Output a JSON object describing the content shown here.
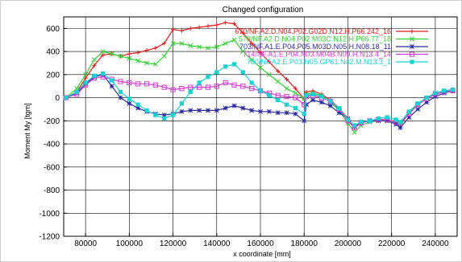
{
  "chart_data": {
    "type": "line",
    "title": "Changed configuration",
    "xlabel": "x coordinate [mm]",
    "ylabel": "Moment My [tgm]",
    "xlim": [
      70000,
      250000
    ],
    "ylim": [
      -1200,
      700
    ],
    "xticks": [
      "80000",
      "100000",
      "120000",
      "140000",
      "160000",
      "180000",
      "200000",
      "220000",
      "240000"
    ],
    "xtick_values": [
      80000,
      100000,
      120000,
      140000,
      160000,
      180000,
      200000,
      220000,
      240000
    ],
    "yticks": [
      "600",
      "400",
      "200",
      "0",
      "-200",
      "-400",
      "-600",
      "-800",
      "-1000",
      "-1200"
    ],
    "ytick_values": [
      600,
      400,
      200,
      0,
      -200,
      -400,
      -600,
      -800,
      -1000,
      -1200
    ],
    "grid": true,
    "legend_position": "top-right",
    "series": [
      {
        "name": "670/NF.A2.D.N04.P02.G02D.N12.H.P66.242_16",
        "color": "#e11a1a",
        "marker": "plus",
        "points": [
          [
            71000,
            0
          ],
          [
            76000,
            50
          ],
          [
            80000,
            170
          ],
          [
            84000,
            280
          ],
          [
            88000,
            370
          ],
          [
            92000,
            380
          ],
          [
            96000,
            360
          ],
          [
            100000,
            380
          ],
          [
            104000,
            390
          ],
          [
            108000,
            410
          ],
          [
            112000,
            430
          ],
          [
            116000,
            470
          ],
          [
            120000,
            590
          ],
          [
            124000,
            580
          ],
          [
            128000,
            600
          ],
          [
            132000,
            610
          ],
          [
            136000,
            620
          ],
          [
            140000,
            630
          ],
          [
            144000,
            650
          ],
          [
            148000,
            640
          ],
          [
            152000,
            560
          ],
          [
            156000,
            470
          ],
          [
            160000,
            390
          ],
          [
            164000,
            310
          ],
          [
            168000,
            230
          ],
          [
            172000,
            160
          ],
          [
            176000,
            80
          ],
          [
            180000,
            -10
          ],
          [
            181000,
            50
          ],
          [
            184000,
            60
          ],
          [
            188000,
            30
          ],
          [
            192000,
            -20
          ],
          [
            196000,
            -90
          ],
          [
            200000,
            -180
          ],
          [
            203000,
            -260
          ],
          [
            206000,
            -220
          ],
          [
            210000,
            -200
          ],
          [
            214000,
            -190
          ],
          [
            218000,
            -190
          ],
          [
            222000,
            -220
          ],
          [
            224000,
            -240
          ],
          [
            228000,
            -130
          ],
          [
            232000,
            -60
          ],
          [
            236000,
            0
          ],
          [
            240000,
            40
          ],
          [
            244000,
            60
          ],
          [
            248000,
            70
          ]
        ]
      },
      {
        "name": "578/NF.A2.D.N04.P02.M03C.N12.H.P66.77_18",
        "color": "#2fd12f",
        "marker": "x",
        "points": [
          [
            71000,
            0
          ],
          [
            76000,
            80
          ],
          [
            80000,
            200
          ],
          [
            84000,
            330
          ],
          [
            88000,
            400
          ],
          [
            92000,
            380
          ],
          [
            96000,
            360
          ],
          [
            100000,
            340
          ],
          [
            104000,
            320
          ],
          [
            108000,
            300
          ],
          [
            112000,
            290
          ],
          [
            116000,
            360
          ],
          [
            120000,
            470
          ],
          [
            124000,
            470
          ],
          [
            128000,
            450
          ],
          [
            132000,
            440
          ],
          [
            136000,
            430
          ],
          [
            140000,
            440
          ],
          [
            144000,
            470
          ],
          [
            148000,
            500
          ],
          [
            152000,
            400
          ],
          [
            156000,
            330
          ],
          [
            160000,
            260
          ],
          [
            164000,
            200
          ],
          [
            168000,
            140
          ],
          [
            172000,
            80
          ],
          [
            176000,
            40
          ],
          [
            180000,
            -10
          ],
          [
            181000,
            30
          ],
          [
            184000,
            40
          ],
          [
            188000,
            20
          ],
          [
            192000,
            -40
          ],
          [
            196000,
            -110
          ],
          [
            200000,
            -220
          ],
          [
            203000,
            -300
          ],
          [
            206000,
            -240
          ],
          [
            210000,
            -210
          ],
          [
            214000,
            -200
          ],
          [
            218000,
            -200
          ],
          [
            222000,
            -210
          ],
          [
            224000,
            -230
          ],
          [
            228000,
            -130
          ],
          [
            232000,
            -60
          ],
          [
            236000,
            0
          ],
          [
            240000,
            40
          ],
          [
            244000,
            60
          ],
          [
            248000,
            70
          ]
        ]
      },
      {
        "name": "703/NF.A1.E.P04.P05.M03D.N05.H.N08.18_11",
        "color": "#2b2ba0",
        "marker": "star",
        "points": [
          [
            71000,
            0
          ],
          [
            76000,
            40
          ],
          [
            80000,
            120
          ],
          [
            84000,
            180
          ],
          [
            88000,
            200
          ],
          [
            92000,
            100
          ],
          [
            96000,
            0
          ],
          [
            100000,
            -50
          ],
          [
            104000,
            -90
          ],
          [
            108000,
            -120
          ],
          [
            112000,
            -140
          ],
          [
            116000,
            -150
          ],
          [
            120000,
            -140
          ],
          [
            124000,
            -120
          ],
          [
            128000,
            -110
          ],
          [
            132000,
            -110
          ],
          [
            136000,
            -110
          ],
          [
            140000,
            -110
          ],
          [
            144000,
            -90
          ],
          [
            148000,
            -70
          ],
          [
            152000,
            -90
          ],
          [
            156000,
            -110
          ],
          [
            160000,
            -120
          ],
          [
            164000,
            -120
          ],
          [
            168000,
            -130
          ],
          [
            172000,
            -130
          ],
          [
            176000,
            -140
          ],
          [
            180000,
            -200
          ],
          [
            181000,
            -60
          ],
          [
            184000,
            -20
          ],
          [
            188000,
            -40
          ],
          [
            192000,
            -70
          ],
          [
            196000,
            -130
          ],
          [
            200000,
            -180
          ],
          [
            203000,
            -250
          ],
          [
            206000,
            -210
          ],
          [
            210000,
            -200
          ],
          [
            214000,
            -200
          ],
          [
            218000,
            -200
          ],
          [
            222000,
            -230
          ],
          [
            224000,
            -260
          ],
          [
            228000,
            -170
          ],
          [
            232000,
            -100
          ],
          [
            236000,
            -40
          ],
          [
            240000,
            10
          ],
          [
            244000,
            40
          ],
          [
            248000,
            60
          ]
        ]
      },
      {
        "name": "714/NF.A1.E.P04.N03.M04B.N09.H.N13.4_14",
        "color": "#d23ad2",
        "marker": "square-open",
        "points": [
          [
            71000,
            0
          ],
          [
            76000,
            30
          ],
          [
            80000,
            110
          ],
          [
            84000,
            170
          ],
          [
            88000,
            180
          ],
          [
            92000,
            160
          ],
          [
            96000,
            140
          ],
          [
            100000,
            130
          ],
          [
            104000,
            120
          ],
          [
            108000,
            120
          ],
          [
            112000,
            110
          ],
          [
            116000,
            90
          ],
          [
            120000,
            70
          ],
          [
            124000,
            80
          ],
          [
            128000,
            90
          ],
          [
            132000,
            90
          ],
          [
            136000,
            90
          ],
          [
            140000,
            100
          ],
          [
            144000,
            130
          ],
          [
            148000,
            110
          ],
          [
            152000,
            100
          ],
          [
            156000,
            80
          ],
          [
            160000,
            60
          ],
          [
            164000,
            40
          ],
          [
            168000,
            20
          ],
          [
            172000,
            10
          ],
          [
            176000,
            0
          ],
          [
            180000,
            -60
          ],
          [
            181000,
            10
          ],
          [
            184000,
            20
          ],
          [
            188000,
            0
          ],
          [
            192000,
            -30
          ],
          [
            196000,
            -100
          ],
          [
            200000,
            -200
          ],
          [
            203000,
            -260
          ],
          [
            206000,
            -220
          ],
          [
            210000,
            -200
          ],
          [
            214000,
            -190
          ],
          [
            218000,
            -190
          ],
          [
            222000,
            -210
          ],
          [
            224000,
            -220
          ],
          [
            228000,
            -140
          ],
          [
            232000,
            -60
          ],
          [
            236000,
            -10
          ],
          [
            240000,
            30
          ],
          [
            244000,
            50
          ],
          [
            248000,
            60
          ]
        ]
      },
      {
        "name": "780/NF.A2.E.P03.N05.GP61.N42.M.N13.3_1",
        "color": "#19d3d3",
        "marker": "square",
        "points": [
          [
            71000,
            0
          ],
          [
            76000,
            50
          ],
          [
            80000,
            130
          ],
          [
            84000,
            190
          ],
          [
            88000,
            210
          ],
          [
            92000,
            150
          ],
          [
            96000,
            50
          ],
          [
            100000,
            -10
          ],
          [
            104000,
            -60
          ],
          [
            108000,
            -110
          ],
          [
            112000,
            -150
          ],
          [
            116000,
            -180
          ],
          [
            120000,
            -150
          ],
          [
            124000,
            -50
          ],
          [
            128000,
            50
          ],
          [
            132000,
            130
          ],
          [
            136000,
            180
          ],
          [
            140000,
            220
          ],
          [
            144000,
            270
          ],
          [
            148000,
            290
          ],
          [
            152000,
            220
          ],
          [
            156000,
            130
          ],
          [
            160000,
            60
          ],
          [
            164000,
            20
          ],
          [
            168000,
            -20
          ],
          [
            172000,
            -60
          ],
          [
            176000,
            -90
          ],
          [
            180000,
            -140
          ],
          [
            181000,
            20
          ],
          [
            184000,
            30
          ],
          [
            188000,
            10
          ],
          [
            192000,
            -30
          ],
          [
            196000,
            -90
          ],
          [
            200000,
            -190
          ],
          [
            203000,
            -240
          ],
          [
            206000,
            -210
          ],
          [
            210000,
            -200
          ],
          [
            214000,
            -180
          ],
          [
            218000,
            -170
          ],
          [
            222000,
            -190
          ],
          [
            224000,
            -210
          ],
          [
            228000,
            -120
          ],
          [
            232000,
            -50
          ],
          [
            236000,
            0
          ],
          [
            240000,
            40
          ],
          [
            244000,
            60
          ],
          [
            248000,
            70
          ]
        ]
      }
    ]
  }
}
